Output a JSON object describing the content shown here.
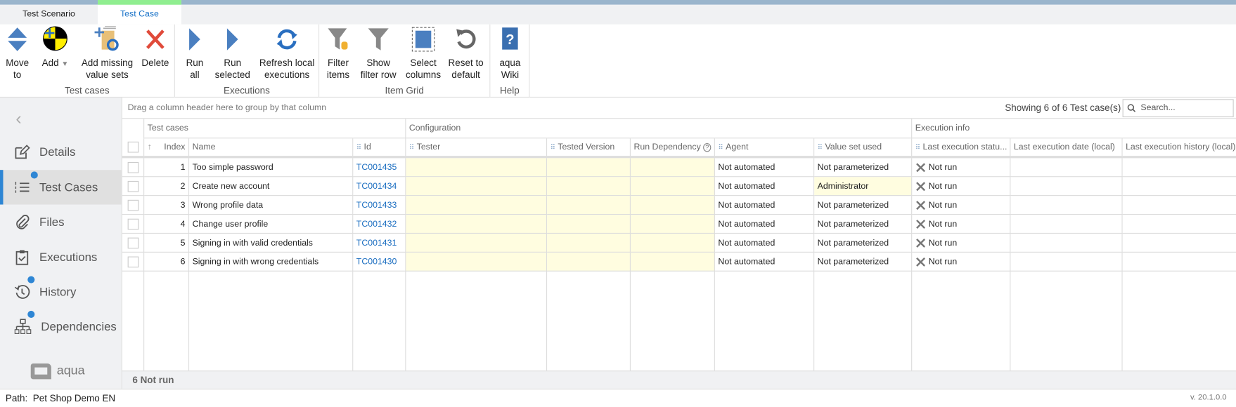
{
  "tabs": [
    {
      "label": "Test Scenario",
      "active": false
    },
    {
      "label": "Test Case",
      "active": true
    }
  ],
  "ribbon": {
    "groups": [
      {
        "label": "Test cases"
      },
      {
        "label": "Executions"
      },
      {
        "label": "Item Grid"
      },
      {
        "label": "Help"
      }
    ],
    "buttons": {
      "move_to": "Move to",
      "add": "Add",
      "add_missing": "Add missing value sets",
      "delete": "Delete",
      "run_all": "Run all",
      "run_selected": "Run selected",
      "refresh": "Refresh local executions",
      "filter_items": "Filter items",
      "show_filter_row": "Show filter row",
      "select_columns": "Select columns",
      "reset_default": "Reset to default",
      "aqua_wiki": "aqua Wiki"
    }
  },
  "sidebar": {
    "items": [
      {
        "label": "Details",
        "icon": "edit-icon"
      },
      {
        "label": "Test Cases",
        "icon": "numbered-list-icon",
        "active": true,
        "badge": true
      },
      {
        "label": "Files",
        "icon": "paperclip-icon"
      },
      {
        "label": "Executions",
        "icon": "clipboard-check-icon"
      },
      {
        "label": "History",
        "icon": "history-icon",
        "badge": true
      },
      {
        "label": "Dependencies",
        "icon": "hierarchy-icon",
        "badge": true
      }
    ],
    "logo": "aqua"
  },
  "grid": {
    "group_hint": "Drag a column header here to group by that column",
    "showing": "Showing 6 of 6 Test case(s)",
    "search_placeholder": "Search...",
    "bands": [
      "Test cases",
      "Configuration",
      "Execution info"
    ],
    "columns": [
      "Index",
      "Name",
      "Id",
      "Tester",
      "Tested Version",
      "Run Dependency",
      "Agent",
      "Value set used",
      "Last execution statu...",
      "Last execution date (local)",
      "Last execution history (local)"
    ],
    "rows": [
      {
        "index": "1",
        "name": "Too simple password",
        "id": "TC001435",
        "agent": "Not automated",
        "value_set": "Not parameterized",
        "status": "Not run"
      },
      {
        "index": "2",
        "name": "Create new account",
        "id": "TC001434",
        "agent": "Not automated",
        "value_set": "Administrator",
        "status": "Not run"
      },
      {
        "index": "3",
        "name": "Wrong profile data",
        "id": "TC001433",
        "agent": "Not automated",
        "value_set": "Not parameterized",
        "status": "Not run"
      },
      {
        "index": "4",
        "name": "Change user profile",
        "id": "TC001432",
        "agent": "Not automated",
        "value_set": "Not parameterized",
        "status": "Not run"
      },
      {
        "index": "5",
        "name": "Signing in with valid credentials",
        "id": "TC001431",
        "agent": "Not automated",
        "value_set": "Not parameterized",
        "status": "Not run"
      },
      {
        "index": "6",
        "name": "Signing in with wrong credentials",
        "id": "TC001430",
        "agent": "Not automated",
        "value_set": "Not parameterized",
        "status": "Not run"
      }
    ],
    "footer": "6 Not run"
  },
  "status": {
    "path": "Path:  Pet Shop Demo EN",
    "version": "v. 20.1.0.0"
  },
  "colors": {
    "accent": "#2e86d4",
    "link": "#1a6dc0",
    "editable_cell": "#fffde0",
    "tab_top": "#90ee90"
  }
}
